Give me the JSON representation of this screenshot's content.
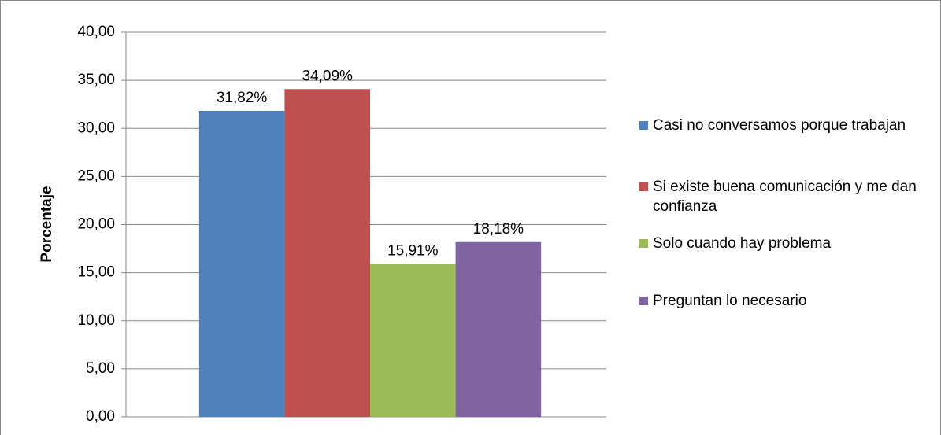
{
  "chart_data": {
    "type": "bar",
    "ylabel": "Porcentaje",
    "categories": [
      null
    ],
    "series": [
      {
        "name": "Casi no conversamos porque trabajan",
        "color": "#4f81bd",
        "values": [
          31.82
        ],
        "value_labels": [
          "31,82%"
        ]
      },
      {
        "name": "Si existe buena comunicación y me dan confianza",
        "color": "#c0504d",
        "values": [
          34.09
        ],
        "value_labels": [
          "34,09%"
        ]
      },
      {
        "name": "Solo cuando hay problema",
        "color": "#9bbb59",
        "values": [
          15.91
        ],
        "value_labels": [
          "15,91%"
        ]
      },
      {
        "name": "Preguntan lo necesario",
        "color": "#8064a2",
        "values": [
          18.18
        ],
        "value_labels": [
          "18,18%"
        ]
      }
    ],
    "ylim": [
      0,
      40
    ],
    "yticks": [
      {
        "value": 0,
        "label": "0,00"
      },
      {
        "value": 5,
        "label": "5,00"
      },
      {
        "value": 10,
        "label": "10,00"
      },
      {
        "value": 15,
        "label": "15,00"
      },
      {
        "value": 20,
        "label": "20,00"
      },
      {
        "value": 25,
        "label": "25,00"
      },
      {
        "value": 30,
        "label": "30,00"
      },
      {
        "value": 35,
        "label": "35,00"
      },
      {
        "value": 40,
        "label": "40,00"
      }
    ],
    "grid": true,
    "legend": "right"
  }
}
